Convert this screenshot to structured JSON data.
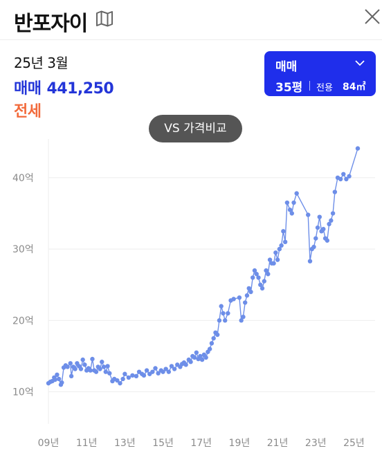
{
  "header": {
    "title": "반포자이",
    "map_icon": "map-icon",
    "close_icon": "close-icon"
  },
  "summary": {
    "date": "25년 3월",
    "trade_type": "매매",
    "trade_price": "441,250",
    "jeonse_label": "전세"
  },
  "deal_selector": {
    "type": "매매",
    "pyeong": "35평",
    "area_label": "전용",
    "area_value": "84㎡",
    "accent": "#1f2eeb"
  },
  "compare_button": {
    "label": "VS 가격비교"
  },
  "colors": {
    "series": "#6d8ee8",
    "trade": "#2335d8",
    "jeonse": "#f26a3b"
  },
  "chart_data": {
    "type": "line",
    "x_unit": "year",
    "xlim": [
      2009,
      2025.6
    ],
    "ylim": [
      5.5,
      46
    ],
    "y_ticks": [
      {
        "value": 10,
        "label": "10억"
      },
      {
        "value": 20,
        "label": "20억"
      },
      {
        "value": 30,
        "label": "30억"
      },
      {
        "value": 40,
        "label": "40억"
      }
    ],
    "x_ticks": [
      {
        "value": 2009,
        "label": "09년"
      },
      {
        "value": 2011,
        "label": "11년"
      },
      {
        "value": 2013,
        "label": "13년"
      },
      {
        "value": 2015,
        "label": "15년"
      },
      {
        "value": 2017,
        "label": "17년"
      },
      {
        "value": 2019,
        "label": "19년"
      },
      {
        "value": 2021,
        "label": "21년"
      },
      {
        "value": 2023,
        "label": "23년"
      },
      {
        "value": 2025,
        "label": "25년"
      }
    ],
    "grid": true,
    "series": [
      {
        "points": [
          [
            2009.0,
            11.2
          ],
          [
            2009.1,
            11.4
          ],
          [
            2009.2,
            11.5
          ],
          [
            2009.3,
            12.0
          ],
          [
            2009.35,
            11.7
          ],
          [
            2009.45,
            12.4
          ],
          [
            2009.55,
            11.8
          ],
          [
            2009.65,
            11.0
          ],
          [
            2009.7,
            11.3
          ],
          [
            2009.8,
            13.4
          ],
          [
            2009.9,
            13.7
          ],
          [
            2010.0,
            13.5
          ],
          [
            2010.15,
            14.0
          ],
          [
            2010.2,
            12.2
          ],
          [
            2010.3,
            13.5
          ],
          [
            2010.4,
            13.2
          ],
          [
            2010.5,
            14.0
          ],
          [
            2010.6,
            13.6
          ],
          [
            2010.7,
            13.2
          ],
          [
            2010.8,
            14.5
          ],
          [
            2010.9,
            13.8
          ],
          [
            2011.0,
            13.0
          ],
          [
            2011.1,
            13.3
          ],
          [
            2011.2,
            13.0
          ],
          [
            2011.3,
            14.6
          ],
          [
            2011.4,
            13.0
          ],
          [
            2011.5,
            12.8
          ],
          [
            2011.6,
            13.5
          ],
          [
            2011.7,
            13.2
          ],
          [
            2011.8,
            14.2
          ],
          [
            2011.9,
            13.5
          ],
          [
            2012.0,
            12.8
          ],
          [
            2012.1,
            13.6
          ],
          [
            2012.2,
            12.6
          ],
          [
            2012.35,
            11.5
          ],
          [
            2012.45,
            11.8
          ],
          [
            2012.6,
            11.6
          ],
          [
            2012.75,
            11.2
          ],
          [
            2012.9,
            11.8
          ],
          [
            2013.0,
            12.5
          ],
          [
            2013.2,
            12.0
          ],
          [
            2013.4,
            12.3
          ],
          [
            2013.6,
            12.2
          ],
          [
            2013.75,
            12.8
          ],
          [
            2013.9,
            12.5
          ],
          [
            2014.0,
            12.3
          ],
          [
            2014.15,
            13.0
          ],
          [
            2014.3,
            12.5
          ],
          [
            2014.45,
            12.8
          ],
          [
            2014.6,
            13.3
          ],
          [
            2014.75,
            12.6
          ],
          [
            2014.9,
            13.0
          ],
          [
            2015.0,
            12.8
          ],
          [
            2015.15,
            13.2
          ],
          [
            2015.3,
            12.8
          ],
          [
            2015.45,
            13.6
          ],
          [
            2015.6,
            13.2
          ],
          [
            2015.75,
            13.8
          ],
          [
            2015.9,
            13.5
          ],
          [
            2016.0,
            13.9
          ],
          [
            2016.1,
            14.1
          ],
          [
            2016.2,
            13.8
          ],
          [
            2016.35,
            14.5
          ],
          [
            2016.45,
            14.2
          ],
          [
            2016.55,
            15.0
          ],
          [
            2016.65,
            14.8
          ],
          [
            2016.75,
            15.5
          ],
          [
            2016.85,
            14.6
          ],
          [
            2016.95,
            15.0
          ],
          [
            2017.05,
            14.5
          ],
          [
            2017.15,
            15.2
          ],
          [
            2017.25,
            14.8
          ],
          [
            2017.35,
            15.6
          ],
          [
            2017.45,
            16.0
          ],
          [
            2017.55,
            16.8
          ],
          [
            2017.65,
            17.5
          ],
          [
            2017.75,
            18.3
          ],
          [
            2017.85,
            18.0
          ],
          [
            2017.95,
            20.0
          ],
          [
            2018.05,
            22.0
          ],
          [
            2018.15,
            21.0
          ],
          [
            2018.25,
            20.0
          ],
          [
            2018.4,
            21.0
          ],
          [
            2018.55,
            22.8
          ],
          [
            2018.7,
            23.0
          ],
          [
            2019.0,
            23.2
          ],
          [
            2019.1,
            20.0
          ],
          [
            2019.2,
            20.5
          ],
          [
            2019.3,
            22.5
          ],
          [
            2019.4,
            23.5
          ],
          [
            2019.5,
            24.5
          ],
          [
            2019.6,
            24.0
          ],
          [
            2019.7,
            26.0
          ],
          [
            2019.8,
            27.0
          ],
          [
            2019.9,
            26.5
          ],
          [
            2020.0,
            26.0
          ],
          [
            2020.1,
            25.0
          ],
          [
            2020.2,
            24.5
          ],
          [
            2020.3,
            25.5
          ],
          [
            2020.4,
            27.0
          ],
          [
            2020.5,
            26.5
          ],
          [
            2020.6,
            28.5
          ],
          [
            2020.7,
            28.0
          ],
          [
            2020.8,
            28.0
          ],
          [
            2020.9,
            29.5
          ],
          [
            2021.0,
            28.5
          ],
          [
            2021.1,
            30.0
          ],
          [
            2021.2,
            30.5
          ],
          [
            2021.3,
            32.5
          ],
          [
            2021.4,
            31.0
          ],
          [
            2021.5,
            36.5
          ],
          [
            2021.65,
            35.5
          ],
          [
            2021.75,
            35.0
          ],
          [
            2021.85,
            36.5
          ],
          [
            2022.0,
            37.8
          ],
          [
            2022.6,
            34.8
          ],
          [
            2022.7,
            28.3
          ],
          [
            2022.8,
            30.0
          ],
          [
            2022.9,
            30.3
          ],
          [
            2023.0,
            31.5
          ],
          [
            2023.1,
            33.0
          ],
          [
            2023.2,
            34.5
          ],
          [
            2023.3,
            32.5
          ],
          [
            2023.4,
            32.8
          ],
          [
            2023.5,
            31.5
          ],
          [
            2023.6,
            31.2
          ],
          [
            2023.7,
            33.5
          ],
          [
            2023.8,
            34.0
          ],
          [
            2023.9,
            35.0
          ],
          [
            2024.0,
            38.0
          ],
          [
            2024.15,
            40.0
          ],
          [
            2024.3,
            39.8
          ],
          [
            2024.45,
            40.5
          ],
          [
            2024.6,
            39.8
          ],
          [
            2024.75,
            40.2
          ],
          [
            2025.2,
            44.1
          ]
        ]
      }
    ]
  }
}
